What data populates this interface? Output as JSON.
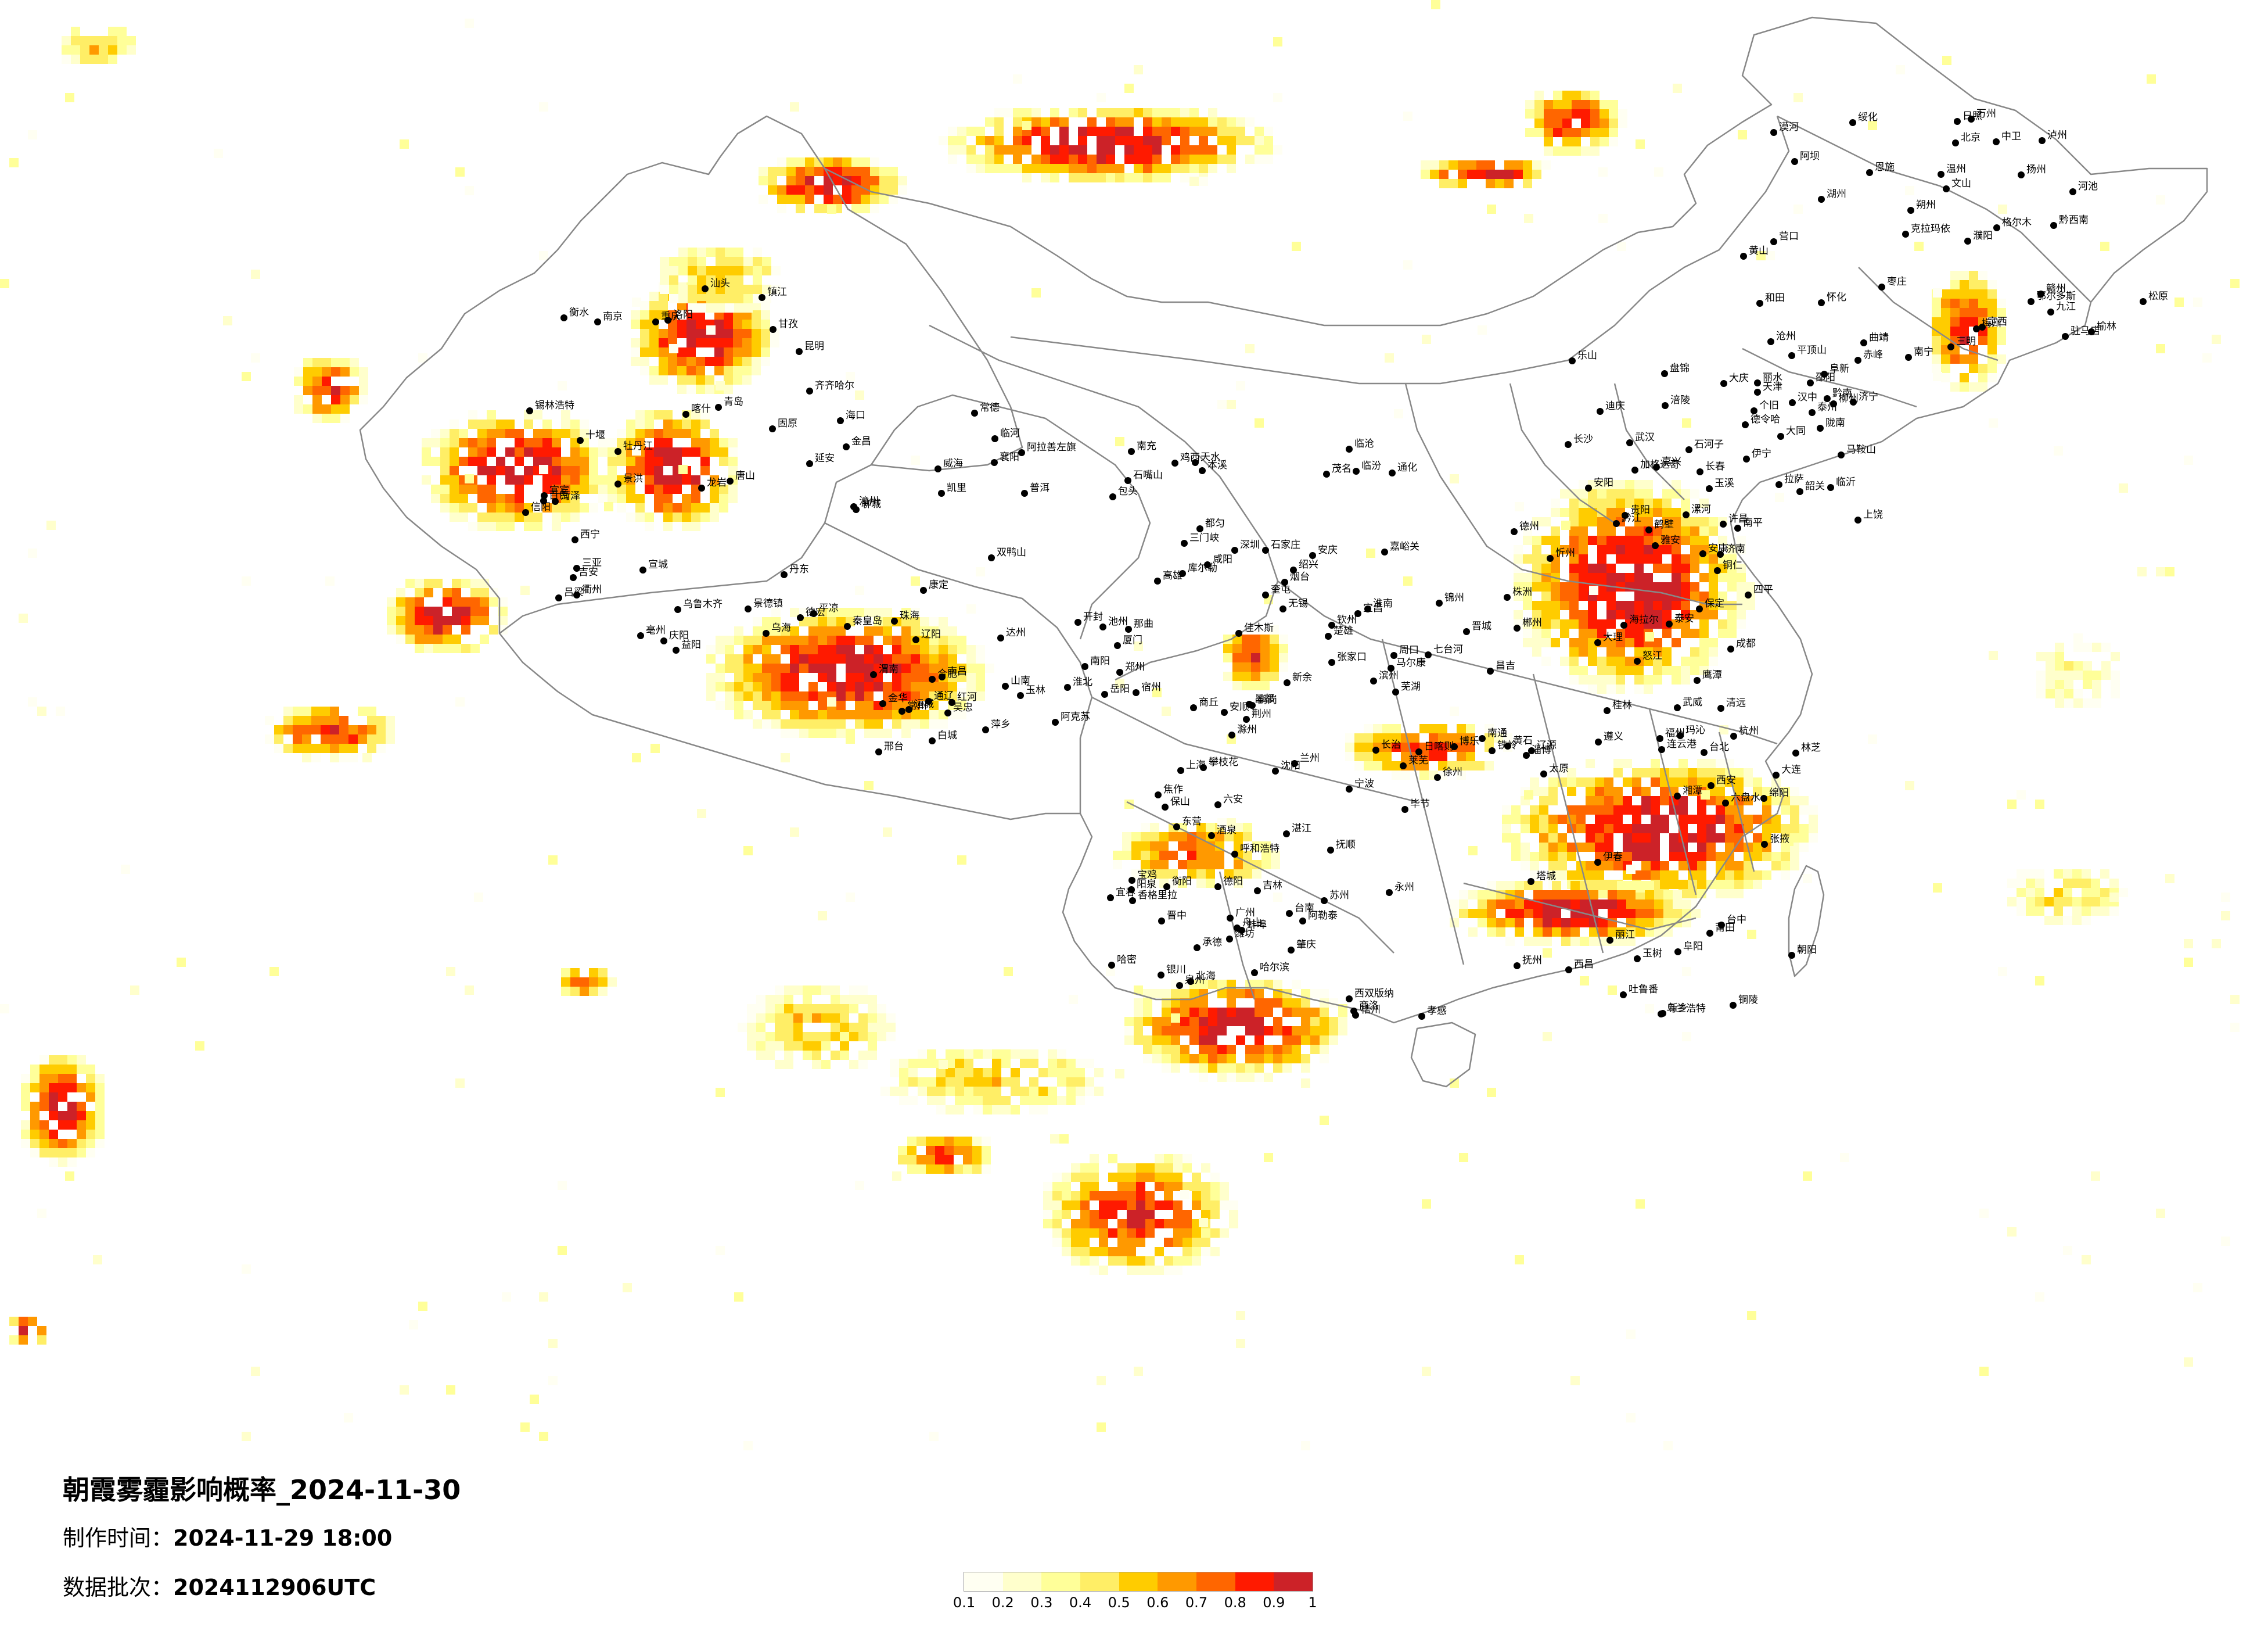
{
  "title": {
    "main": "朝霞雾霾影响概率_2024-11-30",
    "made_label": "制作时间：",
    "made_value": "2024-11-29 18:00",
    "batch_label": "数据批次：",
    "batch_value": "2024112906UTC"
  },
  "legend": {
    "ticks": [
      "0.1",
      "0.2",
      "0.3",
      "0.4",
      "0.5",
      "0.6",
      "0.7",
      "0.8",
      "0.9",
      "1"
    ],
    "colors": [
      "#fffff2",
      "#ffffcc",
      "#ffff99",
      "#ffee66",
      "#ffcc00",
      "#ff9900",
      "#ff6600",
      "#ff1a00",
      "#cc2228"
    ]
  },
  "colors": {
    "border": "#888888",
    "city_dot": "#000000"
  },
  "cities": [
    "漠河",
    "加格达奇",
    "海拉尔",
    "伊春",
    "鹤岗",
    "佳木斯",
    "双鸭山",
    "齐齐哈尔",
    "绥化",
    "大庆",
    "七台河",
    "乌兰浩特",
    "哈尔滨",
    "鸡西",
    "白城",
    "牡丹江",
    "松原",
    "长春",
    "四平",
    "辽源",
    "吉林",
    "通化",
    "通辽",
    "锡林浩特",
    "赤峰",
    "阜新",
    "铁岭",
    "抚顺",
    "沈阳",
    "本溪",
    "辽阳",
    "丹东",
    "营口",
    "盘锦",
    "锦州",
    "朝阳",
    "承德",
    "张家口",
    "秦皇岛",
    "唐山",
    "北京",
    "天津",
    "保定",
    "大连",
    "呼和浩特",
    "包头",
    "临河",
    "乌海",
    "鄂尔多斯",
    "大同",
    "忻州",
    "太原",
    "阳泉",
    "石家庄",
    "邢台",
    "衡水",
    "沧州",
    "德州",
    "济南",
    "淄博",
    "潍坊",
    "烟台",
    "威海",
    "青岛",
    "日照",
    "临沂",
    "连云港",
    "徐州",
    "商丘",
    "郑州",
    "开封",
    "洛阳",
    "平顶山",
    "许昌",
    "周口",
    "阜阳",
    "蚌埠",
    "淮南",
    "合肥",
    "南京",
    "扬州",
    "泰州",
    "南通",
    "苏州",
    "上海",
    "无锡",
    "常州",
    "镇江",
    "湖州",
    "嘉兴",
    "杭州",
    "宁波",
    "舟山",
    "绍兴",
    "金华",
    "衢州",
    "温州",
    "丽水",
    "福州",
    "莆田",
    "泉州",
    "厦门",
    "漳州",
    "龙岩",
    "三明",
    "南平",
    "台北",
    "台中",
    "台南",
    "高雄",
    "南昌",
    "景德镇",
    "九江",
    "上饶",
    "鹰潭",
    "抚州",
    "宜春",
    "新余",
    "萍乡",
    "吉安",
    "赣州",
    "武汉",
    "黄石",
    "孝感",
    "荆州",
    "宜昌",
    "襄阳",
    "十堰",
    "恩施",
    "长沙",
    "株洲",
    "湘潭",
    "衡阳",
    "岳阳",
    "常德",
    "益阳",
    "怀化",
    "邵阳",
    "郴州",
    "永州",
    "广州",
    "深圳",
    "珠海",
    "汕头",
    "梅州",
    "韶关",
    "清远",
    "肇庆",
    "湛江",
    "茂名",
    "海口",
    "三亚",
    "南宁",
    "柳州",
    "桂林",
    "梧州",
    "北海",
    "钦州",
    "玉林",
    "百色",
    "河池",
    "贵阳",
    "遵义",
    "六盘水",
    "安顺",
    "都匀",
    "凯里",
    "昆明",
    "曲靖",
    "玉溪",
    "大理",
    "丽江",
    "保山",
    "临沧",
    "普洱",
    "景洪",
    "文山",
    "个旧",
    "成都",
    "绵阳",
    "德阳",
    "南充",
    "达州",
    "宜宾",
    "泸州",
    "乐山",
    "雅安",
    "西昌",
    "攀枝花",
    "马尔康",
    "康定",
    "重庆",
    "万州",
    "涪陵",
    "黔江",
    "西安",
    "宝鸡",
    "咸阳",
    "渭南",
    "延安",
    "榆林",
    "汉中",
    "安康",
    "商洛",
    "兰州",
    "天水",
    "平凉",
    "庆阳",
    "定西",
    "陇南",
    "武威",
    "张掖",
    "酒泉",
    "嘉峪关",
    "金昌",
    "西宁",
    "格尔木",
    "德令哈",
    "玛沁",
    "玉树",
    "银川",
    "石嘴山",
    "吴忠",
    "固原",
    "中卫",
    "拉萨",
    "日喀则",
    "林芝",
    "昌都",
    "那曲",
    "山南",
    "乌鲁木齐",
    "克拉玛依",
    "石河子",
    "昌吉",
    "吐鲁番",
    "哈密",
    "库尔勒",
    "阿克苏",
    "喀什",
    "和田",
    "伊宁",
    "博乐",
    "塔城",
    "阿勒泰",
    "奎屯",
    "阿拉善左旗",
    "甘孜",
    "阿坝",
    "迪庆",
    "怒江",
    "西双版纳",
    "香格里拉",
    "楚雄",
    "红河",
    "德宏",
    "黔西南",
    "黔南",
    "铜仁",
    "毕节",
    "六安",
    "安庆",
    "池州",
    "宣城",
    "黄山",
    "马鞍山",
    "芜湖",
    "铜陵",
    "滁州",
    "宿州",
    "淮北",
    "亳州",
    "枣庄",
    "济宁",
    "泰安",
    "莱芜",
    "东营",
    "滨州",
    "聊城",
    "菏泽",
    "濮阳",
    "安阳",
    "鹤壁",
    "新乡",
    "焦作",
    "三门峡",
    "南阳",
    "信阳",
    "驻马店",
    "漯河",
    "晋城",
    "长治",
    "晋中",
    "临汾",
    "运城",
    "吕梁",
    "朔州"
  ]
}
